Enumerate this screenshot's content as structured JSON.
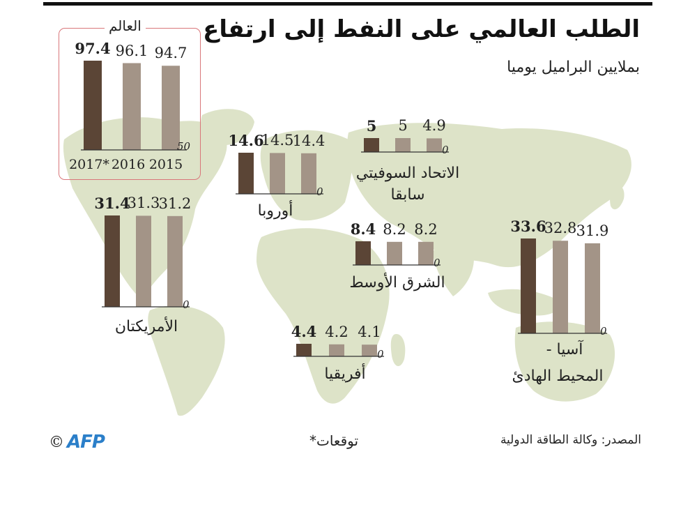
{
  "header": {
    "title": "الطلب العالمي على النفط إلى ارتفاع",
    "subtitle": "بملايين البراميل يوميا"
  },
  "colors": {
    "bar_2017": "#5b4536",
    "bar_other": "#a39487",
    "map_land": "#dde3c8",
    "world_box_border": "#d9767a",
    "afp_blue": "#2b7fc9"
  },
  "chart_data": [
    {
      "type": "bar",
      "region": "العالم",
      "categories": [
        "2017*",
        "2016",
        "2015"
      ],
      "values": [
        97.4,
        96.1,
        94.7
      ],
      "labels": [
        "97.4",
        "96.1",
        "94.7"
      ],
      "axis_min_label": "50",
      "ylim": [
        50,
        97.4
      ]
    },
    {
      "type": "bar",
      "region": "الأمريكتان",
      "categories": [
        "2017*",
        "2016",
        "2015"
      ],
      "values": [
        31.4,
        31.3,
        31.2
      ],
      "labels": [
        "31.4",
        "31.3",
        "31.2"
      ],
      "axis_min_label": "0"
    },
    {
      "type": "bar",
      "region": "أوروبا",
      "categories": [
        "2017*",
        "2016",
        "2015"
      ],
      "values": [
        14.6,
        14.5,
        14.4
      ],
      "labels": [
        "14.6",
        "14.5",
        "14.4"
      ],
      "axis_min_label": "0"
    },
    {
      "type": "bar",
      "region": "الاتحاد السوفيتي سابقا",
      "categories": [
        "2017*",
        "2016",
        "2015"
      ],
      "values": [
        5,
        5,
        4.9
      ],
      "labels": [
        "5",
        "5",
        "4.9"
      ],
      "axis_min_label": "0"
    },
    {
      "type": "bar",
      "region": "الشرق الأوسط",
      "categories": [
        "2017*",
        "2016",
        "2015"
      ],
      "values": [
        8.4,
        8.2,
        8.2
      ],
      "labels": [
        "8.4",
        "8.2",
        "8.2"
      ],
      "axis_min_label": "0"
    },
    {
      "type": "bar",
      "region": "أفريقيا",
      "categories": [
        "2017*",
        "2016",
        "2015"
      ],
      "values": [
        4.4,
        4.2,
        4.1
      ],
      "labels": [
        "4.4",
        "4.2",
        "4.1"
      ],
      "axis_min_label": "0"
    },
    {
      "type": "bar",
      "region": "آسيا - المحيط الهادئ",
      "categories": [
        "2017*",
        "2016",
        "2015"
      ],
      "values": [
        33.6,
        32.8,
        31.9
      ],
      "labels": [
        "33.6",
        "32.8",
        "31.9"
      ],
      "axis_min_label": "0"
    }
  ],
  "regions": {
    "world": "العالم",
    "americas": "الأمريكتان",
    "europe": "أوروبا",
    "ussr_line1": "الاتحاد السوفيتي",
    "ussr_line2": "سابقا",
    "middle_east": "الشرق الأوسط",
    "africa": "أفريقيا",
    "asia_line1": "آسيا -",
    "asia_line2": "المحيط الهادئ"
  },
  "world_years": [
    "2017*",
    "2016",
    "2015"
  ],
  "footer": {
    "source": "المصدر: وكالة الطاقة الدولية",
    "forecast_note": "*توقعات",
    "copyright": "©",
    "logo": "AFP"
  }
}
